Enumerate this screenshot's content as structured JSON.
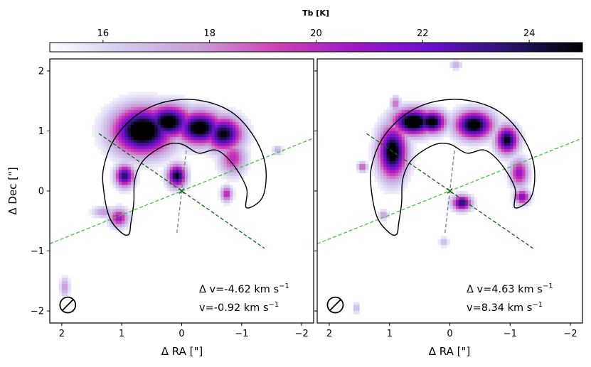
{
  "chart_data": {
    "type": "heatmap",
    "colorbar": {
      "title": "Tb [K]",
      "range": [
        15.0,
        25.0
      ],
      "ticks": [
        16,
        18,
        20,
        22,
        24
      ],
      "colormap": [
        "#ffffff",
        "#d2c8ee",
        "#c89ad8",
        "#d040b4",
        "#a018c8",
        "#6a10cc",
        "#2a1470",
        "#000000"
      ]
    },
    "contour_color": "#000000",
    "axis_line_color": "#37c637",
    "outflow_line_color": "#0a6a0a",
    "jet_line_color": "#808080",
    "panels": [
      {
        "name": "left",
        "xlabel": "Δ RA [\"]",
        "ylabel": "Δ Dec [\"]",
        "xlim": [
          2.2,
          -2.2
        ],
        "ylim": [
          -2.2,
          2.2
        ],
        "xticks": [
          2,
          1,
          0,
          -1,
          -2
        ],
        "yticks": [
          2,
          1,
          0,
          -1,
          -2
        ],
        "xtick_labels": [
          "2",
          "1",
          "0",
          "−1",
          "−2"
        ],
        "ytick_labels": [
          "2",
          "1",
          "0",
          "−1",
          "−2"
        ],
        "annotation_dv": "Δ v=-4.62 km s",
        "annotation_v": "v=-0.92 km s",
        "annotation_unit_exp": "−1",
        "emission_peaks": [
          {
            "x": 0.65,
            "y": 1.0,
            "sx": 0.32,
            "sy": 0.25,
            "tb": 27
          },
          {
            "x": 0.22,
            "y": 1.15,
            "sx": 0.25,
            "sy": 0.18,
            "tb": 26
          },
          {
            "x": -0.3,
            "y": 1.05,
            "sx": 0.25,
            "sy": 0.18,
            "tb": 26
          },
          {
            "x": -0.7,
            "y": 0.95,
            "sx": 0.2,
            "sy": 0.18,
            "tb": 25
          },
          {
            "x": 0.95,
            "y": 0.25,
            "sx": 0.1,
            "sy": 0.12,
            "tb": 24
          },
          {
            "x": 0.08,
            "y": 0.25,
            "sx": 0.1,
            "sy": 0.12,
            "tb": 25
          },
          {
            "x": 1.05,
            "y": -0.45,
            "sx": 0.1,
            "sy": 0.1,
            "tb": 21
          },
          {
            "x": -0.85,
            "y": 0.55,
            "sx": 0.14,
            "sy": 0.18,
            "tb": 20
          },
          {
            "x": -0.75,
            "y": -0.05,
            "sx": 0.06,
            "sy": 0.08,
            "tb": 20.5
          },
          {
            "x": 1.3,
            "y": -0.35,
            "sx": 0.12,
            "sy": 0.06,
            "tb": 18
          },
          {
            "x": 1.95,
            "y": -1.6,
            "sx": 0.05,
            "sy": 0.1,
            "tb": 18
          },
          {
            "x": -1.6,
            "y": 0.68,
            "sx": 0.05,
            "sy": 0.05,
            "tb": 17.5
          }
        ],
        "horseshoe_contour": [
          [
            -0.28,
            0.63
          ],
          [
            -0.58,
            0.68
          ],
          [
            -0.85,
            0.45
          ],
          [
            -1.08,
            0.05
          ],
          [
            -1.08,
            -0.28
          ],
          [
            -1.35,
            -0.1
          ],
          [
            -1.4,
            0.4
          ],
          [
            -1.22,
            0.88
          ],
          [
            -0.85,
            1.3
          ],
          [
            -0.35,
            1.5
          ],
          [
            0.2,
            1.5
          ],
          [
            0.7,
            1.3
          ],
          [
            1.1,
            0.9
          ],
          [
            1.3,
            0.4
          ],
          [
            1.3,
            0.0
          ],
          [
            1.2,
            -0.45
          ],
          [
            1.0,
            -0.7
          ],
          [
            0.88,
            -0.72
          ],
          [
            0.85,
            -0.55
          ],
          [
            0.8,
            -0.2
          ],
          [
            0.78,
            0.2
          ],
          [
            0.63,
            0.52
          ],
          [
            0.28,
            0.76
          ],
          [
            0.0,
            0.78
          ]
        ],
        "beam": {
          "x": 1.9,
          "y": -1.9,
          "rx": 0.13,
          "ry": 0.13
        }
      },
      {
        "name": "right",
        "xlabel": "Δ RA [\"]",
        "xlim": [
          2.2,
          -2.2
        ],
        "ylim": [
          -2.2,
          2.2
        ],
        "xticks": [
          2,
          1,
          0,
          -1,
          -2
        ],
        "xtick_labels": [
          "2",
          "1",
          "0",
          "−1",
          "−2"
        ],
        "annotation_dv": "Δ v=4.63 km s",
        "annotation_v": "v=8.34 km s",
        "annotation_unit_exp": "−1",
        "emission_peaks": [
          {
            "x": 0.6,
            "y": 1.15,
            "sx": 0.22,
            "sy": 0.14,
            "tb": 27
          },
          {
            "x": 0.3,
            "y": 1.15,
            "sx": 0.15,
            "sy": 0.12,
            "tb": 26
          },
          {
            "x": 0.95,
            "y": 0.65,
            "sx": 0.15,
            "sy": 0.28,
            "tb": 26
          },
          {
            "x": -0.4,
            "y": 1.1,
            "sx": 0.2,
            "sy": 0.15,
            "tb": 26
          },
          {
            "x": -0.95,
            "y": 0.85,
            "sx": 0.12,
            "sy": 0.15,
            "tb": 25
          },
          {
            "x": -1.15,
            "y": 0.3,
            "sx": 0.1,
            "sy": 0.15,
            "tb": 21
          },
          {
            "x": -1.2,
            "y": -0.1,
            "sx": 0.08,
            "sy": 0.08,
            "tb": 22
          },
          {
            "x": -0.2,
            "y": -0.2,
            "sx": 0.1,
            "sy": 0.08,
            "tb": 24
          },
          {
            "x": 1.1,
            "y": -0.4,
            "sx": 0.05,
            "sy": 0.05,
            "tb": 18
          },
          {
            "x": 1.45,
            "y": 0.4,
            "sx": 0.05,
            "sy": 0.05,
            "tb": 19.5
          },
          {
            "x": 0.9,
            "y": 1.45,
            "sx": 0.05,
            "sy": 0.08,
            "tb": 19
          },
          {
            "x": -0.1,
            "y": 2.1,
            "sx": 0.06,
            "sy": 0.05,
            "tb": 17.5
          },
          {
            "x": 1.55,
            "y": -1.95,
            "sx": 0.04,
            "sy": 0.06,
            "tb": 17
          },
          {
            "x": 0.1,
            "y": -0.85,
            "sx": 0.05,
            "sy": 0.05,
            "tb": 17
          }
        ],
        "horseshoe_contour": [
          [
            -0.28,
            0.63
          ],
          [
            -0.58,
            0.68
          ],
          [
            -0.85,
            0.45
          ],
          [
            -1.08,
            0.05
          ],
          [
            -1.08,
            -0.28
          ],
          [
            -1.35,
            -0.1
          ],
          [
            -1.4,
            0.4
          ],
          [
            -1.22,
            0.88
          ],
          [
            -0.85,
            1.3
          ],
          [
            -0.35,
            1.5
          ],
          [
            0.2,
            1.5
          ],
          [
            0.7,
            1.3
          ],
          [
            1.1,
            0.9
          ],
          [
            1.3,
            0.4
          ],
          [
            1.3,
            0.0
          ],
          [
            1.2,
            -0.45
          ],
          [
            1.0,
            -0.7
          ],
          [
            0.88,
            -0.72
          ],
          [
            0.85,
            -0.55
          ],
          [
            0.8,
            -0.2
          ],
          [
            0.78,
            0.2
          ],
          [
            0.63,
            0.52
          ],
          [
            0.28,
            0.76
          ],
          [
            0.0,
            0.78
          ]
        ],
        "beam": {
          "x": 1.9,
          "y": -1.9,
          "rx": 0.13,
          "ry": 0.13
        }
      }
    ],
    "overlay_lines": {
      "major_axis": {
        "slope": -0.4,
        "x_range": [
          2.2,
          -2.2
        ]
      },
      "outflow_axis": {
        "slope": 0.6927,
        "x_range": [
          1.38,
          -1.38
        ]
      },
      "jet_axis": {
        "from": [
          0.08,
          -0.7
        ],
        "to": [
          -0.08,
          0.7
        ]
      },
      "center_marker": [
        0.0,
        0.0
      ]
    }
  }
}
